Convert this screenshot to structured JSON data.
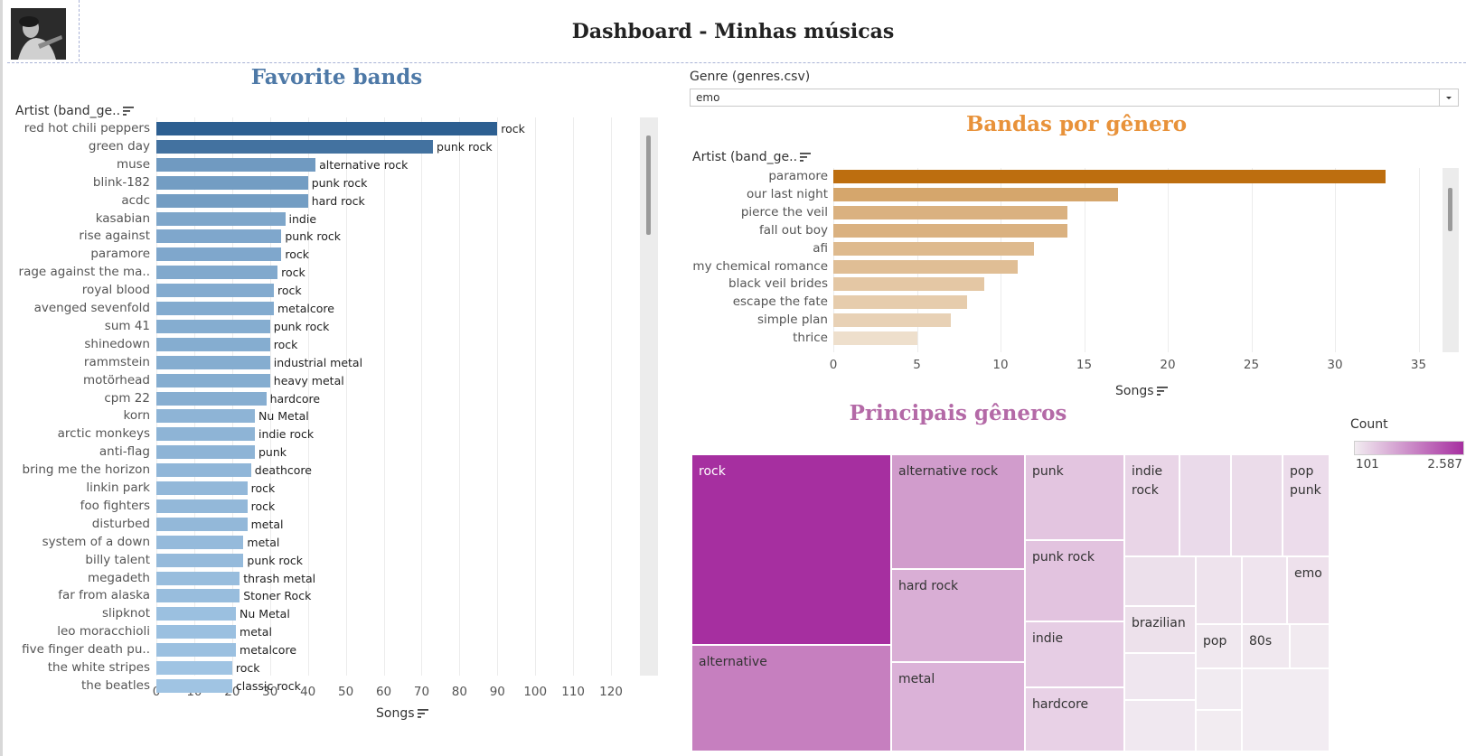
{
  "dashboard": {
    "title": "Dashboard - Minhas músicas"
  },
  "favorite_bands": {
    "title": "Favorite bands",
    "row_header": "Artist (band_ge..",
    "x_title": "Songs",
    "chart_data": {
      "type": "bar",
      "orientation": "horizontal",
      "xlim": [
        0,
        130
      ],
      "x_ticks": [
        "0",
        "10",
        "20",
        "30",
        "40",
        "50",
        "60",
        "70",
        "80",
        "90",
        "100",
        "110",
        "120"
      ],
      "categories": [
        "red hot chili peppers",
        "green day",
        "muse",
        "blink-182",
        "acdc",
        "kasabian",
        "rise against",
        "paramore",
        "rage against the ma..",
        "royal blood",
        "avenged sevenfold",
        "sum 41",
        "shinedown",
        "rammstein",
        "motörhead",
        "cpm 22",
        "korn",
        "arctic monkeys",
        "anti-flag",
        "bring me the horizon",
        "linkin park",
        "foo fighters",
        "disturbed",
        "system of a down",
        "billy talent",
        "megadeth",
        "far from alaska",
        "slipknot",
        "leo moracchioli",
        "five finger death pu..",
        "the white stripes",
        "the beatles"
      ],
      "values": [
        90,
        73,
        42,
        40,
        40,
        34,
        33,
        33,
        32,
        31,
        31,
        30,
        30,
        30,
        30,
        29,
        26,
        26,
        26,
        25,
        24,
        24,
        24,
        23,
        23,
        22,
        22,
        21,
        21,
        21,
        20,
        20
      ],
      "genres": [
        "rock",
        "punk rock",
        "alternative rock",
        "punk rock",
        "hard rock",
        "indie",
        "punk rock",
        "rock",
        "rock",
        "rock",
        "metalcore",
        "punk rock",
        "rock",
        "industrial metal",
        "heavy metal",
        "hardcore",
        "Nu Metal",
        "indie rock",
        "punk",
        "deathcore",
        "rock",
        "rock",
        "metal",
        "metal",
        "punk rock",
        "thrash metal",
        "Stoner Rock",
        "Nu Metal",
        "metal",
        "metalcore",
        "rock",
        "classic rock"
      ],
      "color_scale": [
        "#a0c4e3",
        "#2d5f91"
      ]
    }
  },
  "genre_filter": {
    "label": "Genre (genres.csv)",
    "selected": "emo"
  },
  "bandas_por_genero": {
    "title": "Bandas por gênero",
    "row_header": "Artist (band_ge..",
    "x_title": "Songs",
    "chart_data": {
      "type": "bar",
      "orientation": "horizontal",
      "xlim": [
        0,
        36
      ],
      "x_ticks": [
        "0",
        "5",
        "10",
        "15",
        "20",
        "25",
        "30",
        "35"
      ],
      "categories": [
        "paramore",
        "our last night",
        "pierce the veil",
        "fall out boy",
        "afi",
        "my chemical romance",
        "black veil brides",
        "escape the fate",
        "simple plan",
        "thrice"
      ],
      "values": [
        33,
        17,
        14,
        14,
        12,
        11,
        9,
        8,
        7,
        5
      ],
      "color_scale": [
        "#eedfcc",
        "#bd6e0f"
      ]
    }
  },
  "principais_generos": {
    "title": "Principais gêneros",
    "legend": {
      "title": "Count",
      "min": "101",
      "max": "2.587",
      "colors": [
        "#f2ecf1",
        "#a62fa0"
      ]
    },
    "chart_data": {
      "type": "treemap",
      "labeled_tiles": [
        "rock",
        "alternative",
        "alternative rock",
        "hard rock",
        "metal",
        "punk",
        "punk rock",
        "indie",
        "hardcore",
        "indie rock",
        "pop punk",
        "emo",
        "brazilian",
        "pop",
        "80s"
      ],
      "tiles": [
        {
          "label": "rock",
          "color": "#a62fa0",
          "dark": true
        },
        {
          "label": "alternative",
          "color": "#c67fbf",
          "dark": false
        },
        {
          "label": "alternative rock",
          "color": "#d19ccc",
          "dark": false
        },
        {
          "label": "hard rock",
          "color": "#d9aed5",
          "dark": false
        },
        {
          "label": "metal",
          "color": "#dbb2d8",
          "dark": false
        },
        {
          "label": "punk",
          "color": "#e3c5e0",
          "dark": false
        },
        {
          "label": "punk rock",
          "color": "#e2c3df",
          "dark": false
        },
        {
          "label": "indie",
          "color": "#e6cde4",
          "dark": false
        },
        {
          "label": "hardcore",
          "color": "#e8d1e6",
          "dark": false
        },
        {
          "label": "indie rock",
          "color": "#e9d5e7",
          "dark": false
        },
        {
          "label": "",
          "color": "#eadaea",
          "dark": false
        },
        {
          "label": "",
          "color": "#ebdcea",
          "dark": false
        },
        {
          "label": "pop punk",
          "color": "#ecdceb",
          "dark": false
        },
        {
          "label": "",
          "color": "#ece0eb",
          "dark": false
        },
        {
          "label": "",
          "color": "#eee3ed",
          "dark": false
        },
        {
          "label": "",
          "color": "#efe4ee",
          "dark": false
        },
        {
          "label": "emo",
          "color": "#eee1ec",
          "dark": false
        },
        {
          "label": "brazilian",
          "color": "#ede1eb",
          "dark": false
        },
        {
          "label": "",
          "color": "#efe6ef",
          "dark": false
        },
        {
          "label": "",
          "color": "#f0e8f0",
          "dark": false
        },
        {
          "label": "pop",
          "color": "#f0e8ef",
          "dark": false
        },
        {
          "label": "80s",
          "color": "#f0e8ef",
          "dark": false
        },
        {
          "label": "",
          "color": "#f1eaf0",
          "dark": false
        },
        {
          "label": "",
          "color": "#f1ebf1",
          "dark": false
        },
        {
          "label": "",
          "color": "#f2ecf1",
          "dark": false
        },
        {
          "label": "",
          "color": "#f2ecf2",
          "dark": false
        }
      ]
    }
  },
  "icons": {
    "avatar": "profile-photo",
    "sort": "sort-descending-icon",
    "dropdown": "chevron-down-icon"
  }
}
